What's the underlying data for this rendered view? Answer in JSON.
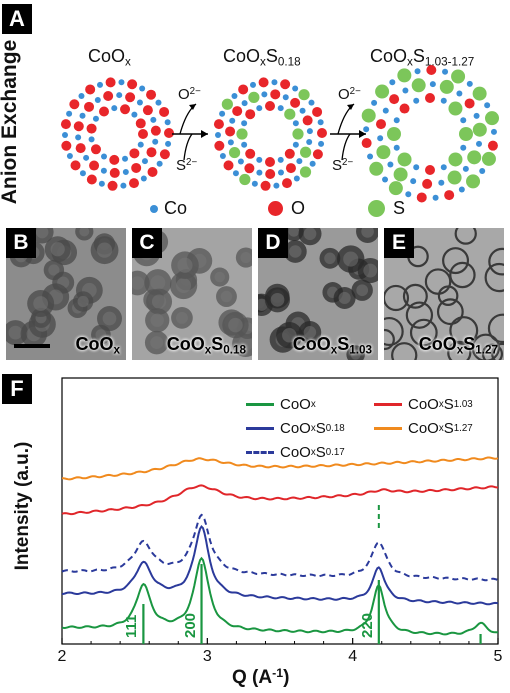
{
  "panel_a": {
    "tag": "A",
    "side_label": "Anion Exchange",
    "structures": [
      {
        "label_main": "CoO",
        "label_sub": "x",
        "label_rest": "",
        "label_rest_sub": ""
      },
      {
        "label_main": "CoO",
        "label_sub": "x",
        "label_rest": "S",
        "label_rest_sub": "0.18"
      },
      {
        "label_main": "CoO",
        "label_sub": "x",
        "label_rest": "S",
        "label_rest_sub": "1.03-1.27"
      }
    ],
    "arrows": [
      {
        "out": "O",
        "out_sup": "2−",
        "in": "S",
        "in_sup": "2−"
      },
      {
        "out": "O",
        "out_sup": "2−",
        "in": "S",
        "in_sup": "2−"
      }
    ],
    "legend": [
      {
        "label": "Co",
        "color": "#3b8fd6"
      },
      {
        "label": "O",
        "color": "#e8262a"
      },
      {
        "label": "S",
        "color": "#7cc65a"
      }
    ]
  },
  "tem_panels": [
    {
      "tag": "B",
      "cap_main": "CoO",
      "cap_sub": "x",
      "cap_rest": "",
      "cap_rest_sub": ""
    },
    {
      "tag": "C",
      "cap_main": "CoO",
      "cap_sub": "x",
      "cap_rest": "S",
      "cap_rest_sub": "0.18"
    },
    {
      "tag": "D",
      "cap_main": "CoO",
      "cap_sub": "x",
      "cap_rest": "S",
      "cap_rest_sub": "1.03"
    },
    {
      "tag": "E",
      "cap_main": "CoO",
      "cap_sub": "x",
      "cap_rest": "S",
      "cap_rest_sub": "1.27"
    }
  ],
  "panel_f": {
    "tag": "F"
  },
  "chart_data": {
    "type": "line",
    "xlabel_main": "Q (A",
    "xlabel_sup": "-1",
    "xlabel_end": ")",
    "ylabel": "Intensity (a.u.)",
    "xlim": [
      2,
      5
    ],
    "x_ticks": [
      "2",
      "3",
      "4",
      "5"
    ],
    "series": [
      {
        "name_main": "CoO",
        "name_sub": "x",
        "name_rest": "",
        "name_rest_sub": "",
        "color": "#1a9641",
        "dash": false
      },
      {
        "name_main": "CoO",
        "name_sub": "x",
        "name_rest": "S",
        "name_rest_sub": "0.18",
        "color": "#2b3a9b",
        "dash": false
      },
      {
        "name_main": "CoO",
        "name_sub": "x",
        "name_rest": "S",
        "name_rest_sub": "0.17",
        "color": "#2b3a9b",
        "dash": true
      },
      {
        "name_main": "CoO",
        "name_sub": "x",
        "name_rest": "S",
        "name_rest_sub": "1.03",
        "color": "#e0262a",
        "dash": false
      },
      {
        "name_main": "CoO",
        "name_sub": "x",
        "name_rest": "S",
        "name_rest_sub": "1.27",
        "color": "#f08a1e",
        "dash": false
      }
    ],
    "reference_peaks": [
      {
        "q": 2.56,
        "label": "111"
      },
      {
        "q": 2.96,
        "label": "200"
      },
      {
        "q": 4.18,
        "label": "220"
      },
      {
        "q": 4.88,
        "label": ""
      }
    ]
  }
}
